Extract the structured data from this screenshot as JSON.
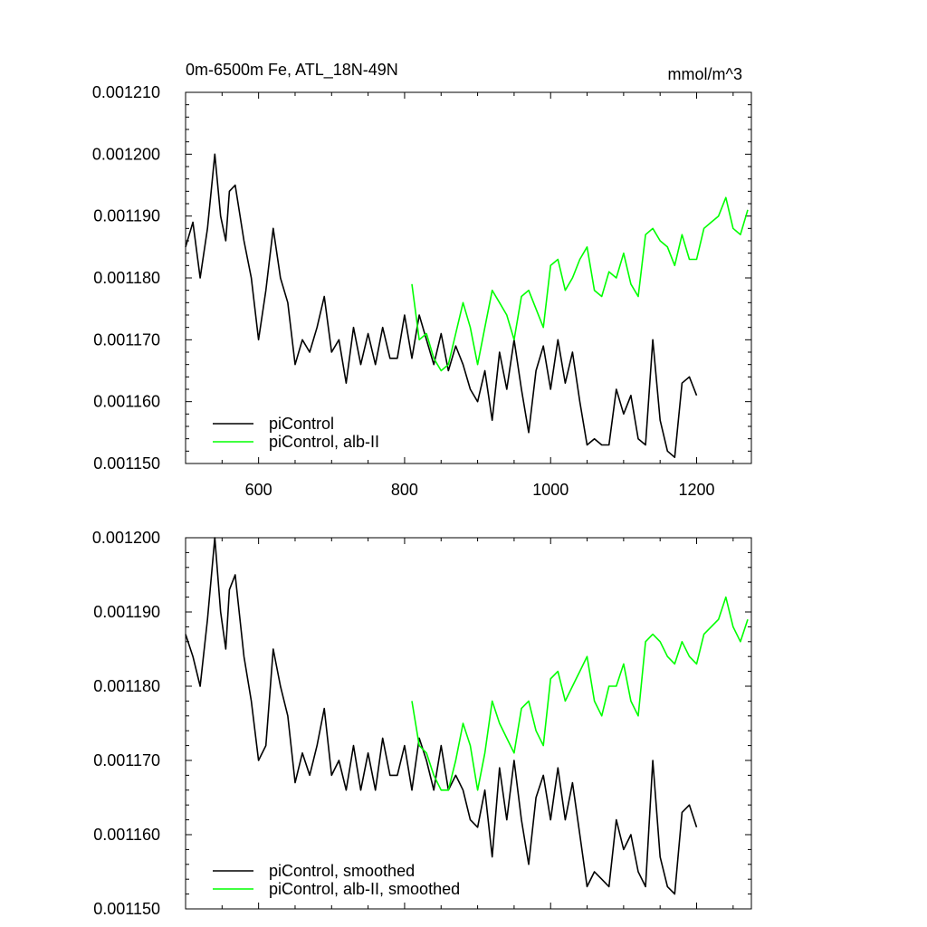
{
  "chart_data": [
    {
      "type": "line",
      "title": "0m-6500m Fe, ATL_18N-49N",
      "units": "mmol/m^3",
      "xlim": [
        500,
        1275
      ],
      "ylim": [
        0.00115,
        0.00121
      ],
      "x_ticks": [
        600,
        800,
        1000,
        1200
      ],
      "x_tick_labels": [
        "600",
        "800",
        "1000",
        "1200"
      ],
      "y_ticks": [
        "0.001150",
        "0.001160",
        "0.001170",
        "0.001180",
        "0.001190",
        "0.001200",
        "0.001210"
      ],
      "legend": "bottom-left",
      "series": [
        {
          "name": "piControl",
          "color": "#000000",
          "x": [
            500,
            510,
            520,
            530,
            540,
            548,
            555,
            560,
            568,
            580,
            590,
            600,
            610,
            620,
            630,
            640,
            650,
            660,
            670,
            680,
            690,
            700,
            710,
            720,
            730,
            740,
            750,
            760,
            770,
            780,
            790,
            800,
            810,
            820,
            830,
            840,
            850,
            860,
            870,
            880,
            890,
            900,
            910,
            920,
            930,
            940,
            950,
            960,
            970,
            980,
            990,
            1000,
            1010,
            1020,
            1030,
            1040,
            1050,
            1060,
            1070,
            1080,
            1090,
            1100,
            1110,
            1120,
            1130,
            1140,
            1150,
            1160,
            1170,
            1180,
            1190,
            1200
          ],
          "values": [
            0.001185,
            0.001189,
            0.00118,
            0.001188,
            0.0012,
            0.00119,
            0.001186,
            0.001194,
            0.001195,
            0.001186,
            0.00118,
            0.00117,
            0.001178,
            0.001188,
            0.00118,
            0.001176,
            0.001166,
            0.00117,
            0.001168,
            0.001172,
            0.001177,
            0.001168,
            0.00117,
            0.001163,
            0.001172,
            0.001166,
            0.001171,
            0.001166,
            0.001172,
            0.001167,
            0.001167,
            0.001174,
            0.001167,
            0.001174,
            0.00117,
            0.001166,
            0.001171,
            0.001165,
            0.001169,
            0.001166,
            0.001162,
            0.00116,
            0.001165,
            0.001157,
            0.001168,
            0.001162,
            0.00117,
            0.001162,
            0.001155,
            0.001165,
            0.001169,
            0.001162,
            0.00117,
            0.001163,
            0.001168,
            0.00116,
            0.001153,
            0.001154,
            0.001153,
            0.001153,
            0.001162,
            0.001158,
            0.001161,
            0.001154,
            0.001153,
            0.00117,
            0.001157,
            0.001152,
            0.001151,
            0.001163,
            0.001164,
            0.001161
          ]
        },
        {
          "name": "piControl, alb-II",
          "color": "#00ff00",
          "x": [
            810,
            820,
            830,
            840,
            850,
            860,
            870,
            880,
            890,
            900,
            910,
            920,
            930,
            940,
            950,
            960,
            970,
            980,
            990,
            1000,
            1010,
            1020,
            1030,
            1040,
            1050,
            1060,
            1070,
            1080,
            1090,
            1100,
            1110,
            1120,
            1130,
            1140,
            1150,
            1160,
            1170,
            1180,
            1190,
            1200,
            1210,
            1220,
            1230,
            1240,
            1250,
            1260,
            1270
          ],
          "values": [
            0.001179,
            0.00117,
            0.001171,
            0.001167,
            0.001165,
            0.001166,
            0.001171,
            0.001176,
            0.001172,
            0.001166,
            0.001172,
            0.001178,
            0.001176,
            0.001174,
            0.00117,
            0.001177,
            0.001178,
            0.001175,
            0.001172,
            0.001182,
            0.001183,
            0.001178,
            0.00118,
            0.001183,
            0.001185,
            0.001178,
            0.001177,
            0.001181,
            0.00118,
            0.001184,
            0.001179,
            0.001177,
            0.001187,
            0.001188,
            0.001186,
            0.001185,
            0.001182,
            0.001187,
            0.001183,
            0.001183,
            0.001188,
            0.001189,
            0.00119,
            0.001193,
            0.001188,
            0.001187,
            0.001191
          ]
        }
      ]
    },
    {
      "type": "line",
      "xlim": [
        500,
        1275
      ],
      "ylim": [
        0.00115,
        0.0012
      ],
      "x_ticks": [
        600,
        800,
        1000,
        1200
      ],
      "y_ticks": [
        "0.001150",
        "0.001160",
        "0.001170",
        "0.001180",
        "0.001190",
        "0.001200"
      ],
      "legend": "bottom-left",
      "series": [
        {
          "name": "piControl, smoothed",
          "color": "#000000",
          "x": [
            500,
            510,
            520,
            530,
            540,
            548,
            555,
            560,
            568,
            580,
            590,
            600,
            610,
            620,
            630,
            640,
            650,
            660,
            670,
            680,
            690,
            700,
            710,
            720,
            730,
            740,
            750,
            760,
            770,
            780,
            790,
            800,
            810,
            820,
            830,
            840,
            850,
            860,
            870,
            880,
            890,
            900,
            910,
            920,
            930,
            940,
            950,
            960,
            970,
            980,
            990,
            1000,
            1010,
            1020,
            1030,
            1040,
            1050,
            1060,
            1070,
            1080,
            1090,
            1100,
            1110,
            1120,
            1130,
            1140,
            1150,
            1160,
            1170,
            1180,
            1190,
            1200
          ],
          "values": [
            0.001187,
            0.001184,
            0.00118,
            0.001189,
            0.0012,
            0.00119,
            0.001185,
            0.001193,
            0.001195,
            0.001184,
            0.001178,
            0.00117,
            0.001172,
            0.001185,
            0.00118,
            0.001176,
            0.001167,
            0.001171,
            0.001168,
            0.001172,
            0.001177,
            0.001168,
            0.00117,
            0.001166,
            0.001172,
            0.001166,
            0.001171,
            0.001166,
            0.001173,
            0.001168,
            0.001168,
            0.001172,
            0.001166,
            0.001173,
            0.00117,
            0.001166,
            0.001172,
            0.001166,
            0.001168,
            0.001166,
            0.001162,
            0.001161,
            0.001166,
            0.001157,
            0.001169,
            0.001162,
            0.00117,
            0.001162,
            0.001156,
            0.001165,
            0.001168,
            0.001162,
            0.001169,
            0.001162,
            0.001167,
            0.00116,
            0.001153,
            0.001155,
            0.001154,
            0.001153,
            0.001162,
            0.001158,
            0.00116,
            0.001155,
            0.001153,
            0.00117,
            0.001157,
            0.001153,
            0.001152,
            0.001163,
            0.001164,
            0.001161
          ]
        },
        {
          "name": "piControl, alb-II, smoothed",
          "color": "#00ff00",
          "x": [
            810,
            820,
            830,
            840,
            850,
            860,
            870,
            880,
            890,
            900,
            910,
            920,
            930,
            940,
            950,
            960,
            970,
            980,
            990,
            1000,
            1010,
            1020,
            1030,
            1040,
            1050,
            1060,
            1070,
            1080,
            1090,
            1100,
            1110,
            1120,
            1130,
            1140,
            1150,
            1160,
            1170,
            1180,
            1190,
            1200,
            1210,
            1220,
            1230,
            1240,
            1250,
            1260,
            1270
          ],
          "values": [
            0.001178,
            0.001172,
            0.001171,
            0.001168,
            0.001166,
            0.001166,
            0.00117,
            0.001175,
            0.001172,
            0.001166,
            0.001171,
            0.001178,
            0.001175,
            0.001173,
            0.001171,
            0.001177,
            0.001178,
            0.001174,
            0.001172,
            0.001181,
            0.001182,
            0.001178,
            0.00118,
            0.001182,
            0.001184,
            0.001178,
            0.001176,
            0.00118,
            0.00118,
            0.001183,
            0.001178,
            0.001176,
            0.001186,
            0.001187,
            0.001186,
            0.001184,
            0.001183,
            0.001186,
            0.001184,
            0.001183,
            0.001187,
            0.001188,
            0.001189,
            0.001192,
            0.001188,
            0.001186,
            0.001189
          ]
        }
      ]
    }
  ]
}
